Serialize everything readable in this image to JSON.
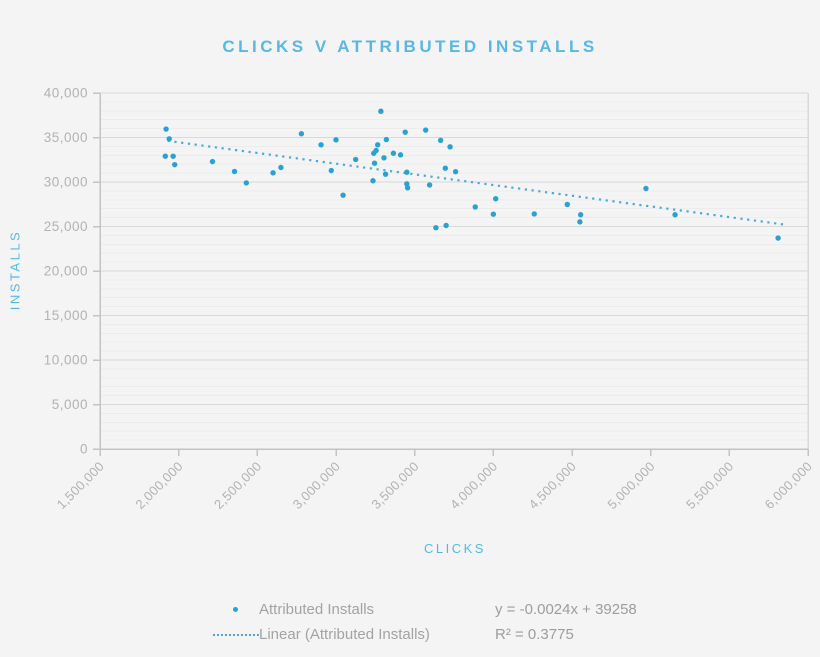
{
  "chart": {
    "title": "CLICKS V ATTRIBUTED INSTALLS",
    "x_axis_title": "CLICKS",
    "y_axis_title": "INSTALLS"
  },
  "legend": {
    "series_label": "Attributed Installs",
    "trend_label": "Linear (Attributed Installs)",
    "equation": "y = -0.0024x + 39258",
    "r_squared": "R² = 0.3775"
  },
  "colors": {
    "background": "#f4f4f4",
    "accent_blue": "#57b8e7",
    "point": "#2aa1d4",
    "trend": "#44abdc",
    "grid_major": "#d9d9d9",
    "grid_minor": "#ececec",
    "axis_line": "#c3c3c3",
    "tick_text": "#b2b2b2",
    "legend_text": "#a3a3a3"
  },
  "chart_data": {
    "type": "scatter",
    "title": "CLICKS V ATTRIBUTED INSTALLS",
    "xlabel": "CLICKS",
    "ylabel": "INSTALLS",
    "xlim": [
      1500000,
      6000000
    ],
    "ylim": [
      0,
      40000
    ],
    "grid": {
      "major_step": 5000,
      "minor_step": 1000,
      "horizontal_only": true
    },
    "x_tick_values": [
      1500000,
      2000000,
      2500000,
      3000000,
      3500000,
      4000000,
      4500000,
      5000000,
      5500000,
      6000000
    ],
    "x_tick_labels": [
      "1,500,000",
      "2,000,000",
      "2,500,000",
      "3,000,000",
      "3,500,000",
      "4,000,000",
      "4,500,000",
      "5,000,000",
      "5,500,000",
      "6,000,000"
    ],
    "y_tick_values": [
      0,
      5000,
      10000,
      15000,
      20000,
      25000,
      30000,
      35000,
      40000
    ],
    "y_tick_labels": [
      "0",
      "5,000",
      "10,000",
      "15,000",
      "20,000",
      "25,000",
      "30,000",
      "35,000",
      "40,000"
    ],
    "legend_position": "bottom",
    "series": [
      {
        "name": "Attributed Installs",
        "points": [
          [
            1920000,
            35950
          ],
          [
            1940000,
            34850
          ],
          [
            1915000,
            32900
          ],
          [
            1965000,
            32900
          ],
          [
            1975000,
            31950
          ],
          [
            2215000,
            32300
          ],
          [
            2355000,
            31180
          ],
          [
            2430000,
            29900
          ],
          [
            2600000,
            31030
          ],
          [
            2650000,
            31630
          ],
          [
            2780000,
            35420
          ],
          [
            2905000,
            34180
          ],
          [
            2970000,
            31290
          ],
          [
            3000000,
            34740
          ],
          [
            3045000,
            28520
          ],
          [
            3125000,
            32530
          ],
          [
            3235000,
            30140
          ],
          [
            3240000,
            33230
          ],
          [
            3245000,
            32110
          ],
          [
            3255000,
            33540
          ],
          [
            3265000,
            34180
          ],
          [
            3285000,
            37950
          ],
          [
            3305000,
            32720
          ],
          [
            3320000,
            34770
          ],
          [
            3315000,
            30880
          ],
          [
            3365000,
            33230
          ],
          [
            3410000,
            33050
          ],
          [
            3440000,
            35600
          ],
          [
            3450000,
            31100
          ],
          [
            3450000,
            29800
          ],
          [
            3455000,
            29350
          ],
          [
            3570000,
            35830
          ],
          [
            3595000,
            29670
          ],
          [
            3635000,
            24870
          ],
          [
            3665000,
            34680
          ],
          [
            3695000,
            31550
          ],
          [
            3700000,
            25120
          ],
          [
            3725000,
            33950
          ],
          [
            3760000,
            31160
          ],
          [
            3885000,
            27200
          ],
          [
            4000000,
            26380
          ],
          [
            4015000,
            28120
          ],
          [
            4260000,
            26410
          ],
          [
            4470000,
            27480
          ],
          [
            4555000,
            26320
          ],
          [
            4550000,
            25520
          ],
          [
            4970000,
            29270
          ],
          [
            5155000,
            26320
          ],
          [
            5810000,
            23700
          ]
        ]
      }
    ],
    "trendline": {
      "name": "Linear (Attributed Installs)",
      "slope": -0.0024,
      "intercept": 39258,
      "x_range": [
        1930000,
        5845000
      ],
      "equation": "y = -0.0024x + 39258",
      "r2_label": "R² = 0.3775",
      "r2": 0.3775,
      "style": "dotted"
    }
  }
}
